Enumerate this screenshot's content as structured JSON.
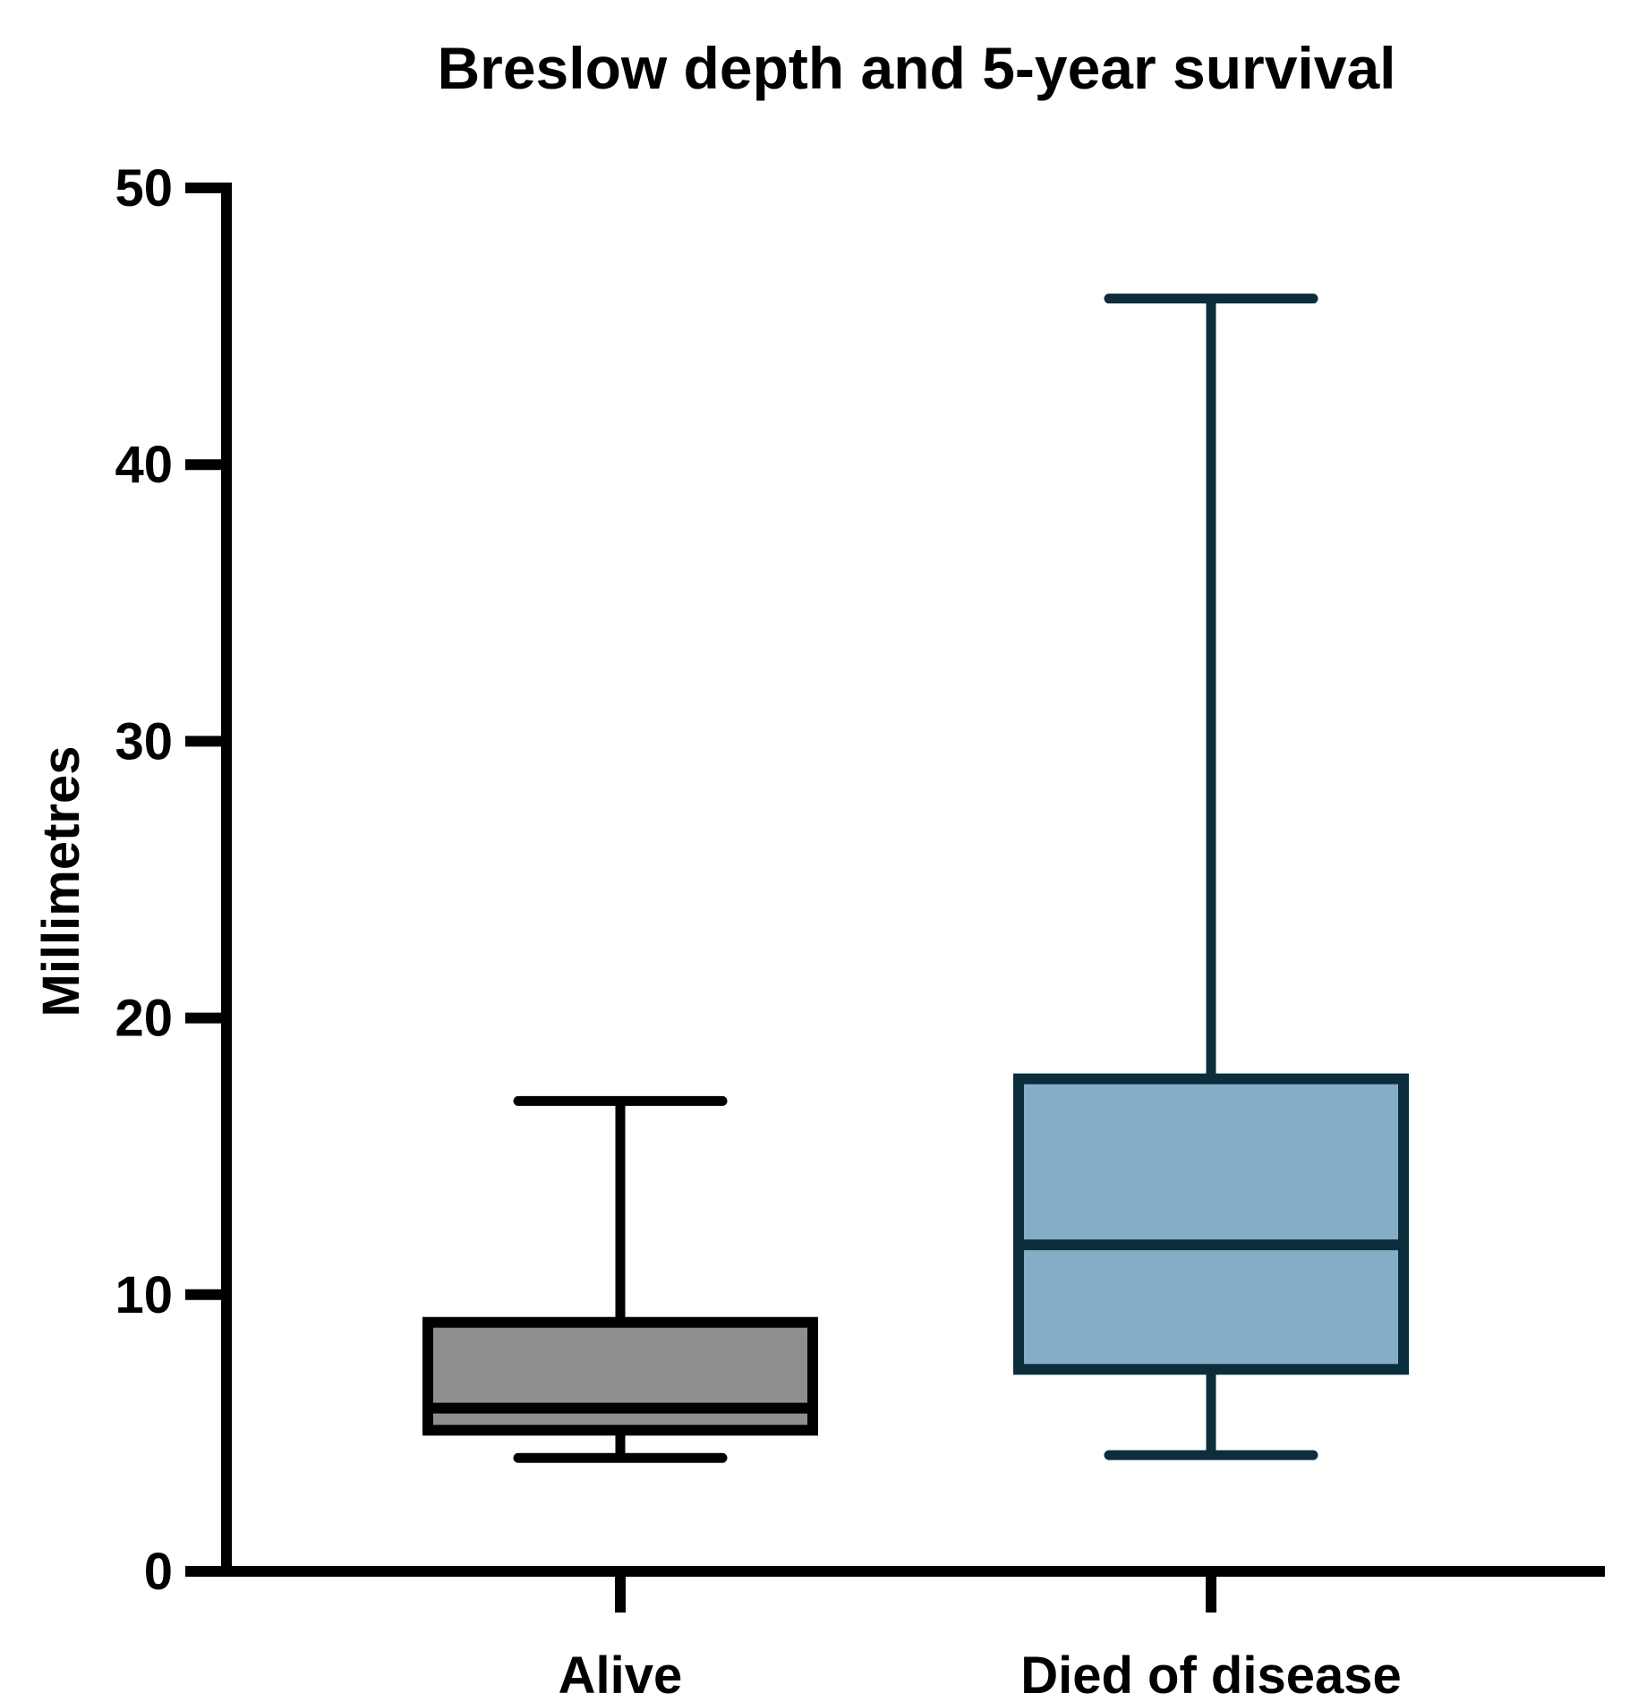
{
  "chart_data": {
    "type": "boxplot",
    "title": "Breslow depth and 5-year survival",
    "xlabel": "",
    "ylabel": "Millimetres",
    "ylim": [
      0,
      50
    ],
    "yticks": [
      0,
      10,
      20,
      30,
      40,
      50
    ],
    "grid": false,
    "categories": [
      "Alive",
      "Died of disease"
    ],
    "series": [
      {
        "name": "Alive",
        "min": 4.1,
        "q1": 5.1,
        "median": 5.9,
        "q3": 9.0,
        "max": 17.0,
        "fill": "#8e8e8e",
        "stroke": "#000000"
      },
      {
        "name": "Died of disease",
        "min": 4.2,
        "q1": 7.3,
        "median": 11.8,
        "q3": 17.8,
        "max": 46.0,
        "fill": "#86adc8",
        "stroke": "#0c2d3c"
      }
    ]
  }
}
